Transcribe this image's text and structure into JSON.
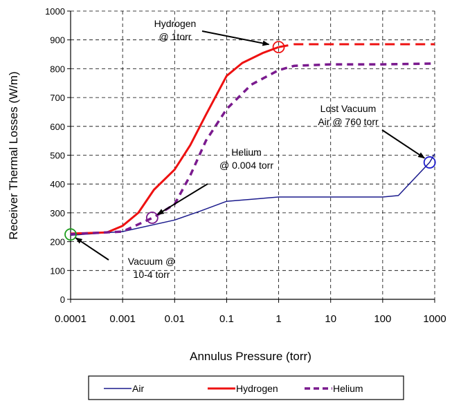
{
  "chart_data": {
    "type": "line",
    "xlabel": "Annulus Pressure (torr)",
    "ylabel": "Receiver Thermal Losses (W/m)",
    "x_scale": "log",
    "xlim": [
      0.0001,
      1000
    ],
    "ylim": [
      0,
      1000
    ],
    "x_ticks": [
      "0.0001",
      "0.001",
      "0.01",
      "0.1",
      "1",
      "10",
      "100",
      "1000"
    ],
    "y_ticks": [
      "0",
      "100",
      "200",
      "300",
      "400",
      "500",
      "600",
      "700",
      "800",
      "900",
      "1000"
    ],
    "grid": true,
    "legend_position": "bottom",
    "series": [
      {
        "name": "Air",
        "color": "#1a1a8c",
        "style": "solid",
        "points": [
          [
            0.0001,
            222
          ],
          [
            0.001,
            235
          ],
          [
            0.01,
            275
          ],
          [
            0.03,
            305
          ],
          [
            0.1,
            340
          ],
          [
            1,
            355
          ],
          [
            10,
            355
          ],
          [
            100,
            355
          ],
          [
            200,
            360
          ],
          [
            800,
            475
          ],
          [
            1000,
            505
          ]
        ]
      },
      {
        "name": "Hydrogen",
        "color": "#ee1111",
        "style": "solid",
        "points": [
          [
            0.0001,
            228
          ],
          [
            0.0005,
            232
          ],
          [
            0.001,
            255
          ],
          [
            0.002,
            300
          ],
          [
            0.004,
            380
          ],
          [
            0.01,
            450
          ],
          [
            0.02,
            535
          ],
          [
            0.04,
            640
          ],
          [
            0.1,
            775
          ],
          [
            0.2,
            820
          ],
          [
            0.5,
            855
          ],
          [
            1,
            875
          ]
        ],
        "extension": {
          "style": "dashed",
          "points": [
            [
              1,
              875
            ],
            [
              2,
              885
            ],
            [
              10,
              885
            ],
            [
              100,
              885
            ],
            [
              1000,
              885
            ]
          ]
        }
      },
      {
        "name": "Helium",
        "color": "#7a1a8e",
        "style": "dashed",
        "points": [
          [
            0.0001,
            226
          ],
          [
            0.001,
            235
          ],
          [
            0.004,
            285
          ],
          [
            0.01,
            330
          ],
          [
            0.02,
            430
          ],
          [
            0.04,
            550
          ],
          [
            0.1,
            660
          ],
          [
            0.3,
            745
          ],
          [
            1,
            795
          ],
          [
            2,
            810
          ],
          [
            10,
            815
          ],
          [
            100,
            815
          ],
          [
            1000,
            818
          ]
        ]
      }
    ],
    "markers": [
      {
        "x": 0.0001,
        "y": 225,
        "color": "#1e9e1e"
      },
      {
        "x": 0.0037,
        "y": 283,
        "color": "#7a1a8e"
      },
      {
        "x": 1,
        "y": 875,
        "color": "#ee1111"
      },
      {
        "x": 800,
        "y": 475,
        "color": "#1a1acc"
      }
    ],
    "annotations": [
      {
        "lines": [
          "Hydrogen",
          "@ 1torr"
        ],
        "arrow_to": [
          0.85,
          880
        ]
      },
      {
        "lines": [
          "Helium",
          "@ 0.004 torr"
        ],
        "arrow_to": [
          0.0037,
          283
        ]
      },
      {
        "lines": [
          "Lost Vacuum",
          "Air @ 760 torr"
        ],
        "arrow_to": [
          800,
          478
        ]
      },
      {
        "lines": [
          "Vacuum @",
          "10-4 torr"
        ],
        "arrow_to": [
          0.0001,
          225
        ]
      }
    ]
  }
}
